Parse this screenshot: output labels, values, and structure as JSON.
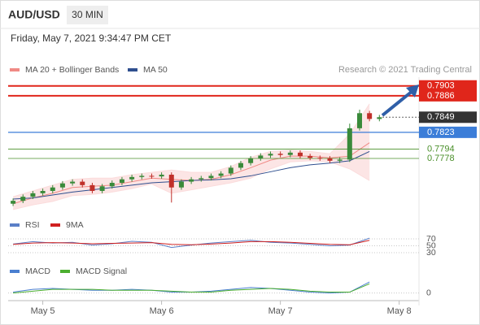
{
  "header": {
    "symbol": "AUD/USD",
    "timeframe": "30 MIN",
    "timestamp": "Friday, May 7, 2021 9:34:47 PM CET"
  },
  "chart_data": {
    "type": "candlestick",
    "credit": "Research © 2021 Trading Central",
    "x": [
      -6,
      -4,
      -2,
      0,
      2,
      4,
      6,
      8,
      10,
      12,
      14,
      16,
      18,
      20,
      22,
      24,
      26,
      28,
      30,
      32,
      34,
      36,
      38,
      40,
      42,
      44,
      46,
      48,
      50,
      52,
      54,
      56,
      58,
      60,
      62,
      64,
      66,
      68
    ],
    "open": [
      0.77,
      0.7705,
      0.7712,
      0.7718,
      0.7722,
      0.7728,
      0.7735,
      0.7738,
      0.7732,
      0.7722,
      0.773,
      0.7736,
      0.7742,
      0.7746,
      0.7748,
      0.7747,
      0.775,
      0.7728,
      0.7738,
      0.7742,
      0.7744,
      0.7748,
      0.7752,
      0.7762,
      0.777,
      0.7778,
      0.7783,
      0.7786,
      0.7784,
      0.7788,
      0.7782,
      0.7779,
      0.7778,
      0.7774,
      0.7776,
      0.783,
      0.7856,
      0.7846
    ],
    "high": [
      0.7709,
      0.7716,
      0.7722,
      0.7726,
      0.7732,
      0.7739,
      0.7742,
      0.7742,
      0.7736,
      0.7734,
      0.774,
      0.7746,
      0.775,
      0.7752,
      0.7752,
      0.7754,
      0.7754,
      0.7742,
      0.7746,
      0.7748,
      0.7752,
      0.7756,
      0.7766,
      0.7774,
      0.7782,
      0.7787,
      0.779,
      0.779,
      0.7792,
      0.7792,
      0.7786,
      0.7783,
      0.7782,
      0.778,
      0.7838,
      0.7862,
      0.786,
      0.7853
    ],
    "low": [
      0.7696,
      0.7701,
      0.7708,
      0.7714,
      0.7718,
      0.7724,
      0.7731,
      0.7728,
      0.7718,
      0.7718,
      0.7726,
      0.7732,
      0.7738,
      0.7742,
      0.7743,
      0.7743,
      0.7702,
      0.7724,
      0.7734,
      0.7738,
      0.774,
      0.7744,
      0.7748,
      0.7758,
      0.7766,
      0.7774,
      0.7779,
      0.778,
      0.778,
      0.7778,
      0.7775,
      0.7774,
      0.777,
      0.777,
      0.7772,
      0.7826,
      0.7842,
      0.7842
    ],
    "close": [
      0.7705,
      0.7712,
      0.7718,
      0.7722,
      0.7728,
      0.7735,
      0.7738,
      0.7732,
      0.7722,
      0.773,
      0.7736,
      0.7742,
      0.7746,
      0.7748,
      0.7747,
      0.775,
      0.7728,
      0.7738,
      0.7742,
      0.7744,
      0.7748,
      0.7752,
      0.7762,
      0.777,
      0.7778,
      0.7783,
      0.7786,
      0.7784,
      0.7788,
      0.7782,
      0.7779,
      0.7778,
      0.7774,
      0.7776,
      0.783,
      0.7856,
      0.7846,
      0.7849
    ],
    "up_color": "#3a8a3a",
    "down_color": "#c0302a",
    "xlim": [
      -7,
      76
    ],
    "xticks": [
      {
        "value": 0,
        "label": "May 5"
      },
      {
        "value": 24,
        "label": "May 6"
      },
      {
        "value": 48,
        "label": "May 7"
      },
      {
        "value": 72,
        "label": "May 8"
      }
    ],
    "ylim": [
      0.7694,
      0.7918
    ],
    "indicator_x": [
      -6,
      -2,
      2,
      6,
      10,
      14,
      18,
      22,
      26,
      30,
      34,
      38,
      42,
      46,
      50,
      54,
      58,
      62,
      66
    ],
    "overlays": [
      {
        "name": "MA 20 + Bollinger Bands",
        "color": "#f08a85",
        "band_color": "#fbdcdc",
        "values": [
          0.77,
          0.771,
          0.7718,
          0.7728,
          0.773,
          0.7732,
          0.7738,
          0.7744,
          0.7742,
          0.774,
          0.7742,
          0.775,
          0.7762,
          0.7775,
          0.7782,
          0.7782,
          0.7779,
          0.7782,
          0.7805
        ],
        "upper": [
          0.7712,
          0.7722,
          0.7732,
          0.7742,
          0.7744,
          0.7744,
          0.775,
          0.7754,
          0.7758,
          0.7754,
          0.7754,
          0.7764,
          0.778,
          0.779,
          0.7792,
          0.779,
          0.7786,
          0.782,
          0.7872
        ],
        "lower": [
          0.769,
          0.7698,
          0.7704,
          0.7714,
          0.7716,
          0.772,
          0.7726,
          0.7734,
          0.7718,
          0.7724,
          0.773,
          0.7736,
          0.7744,
          0.776,
          0.7772,
          0.7774,
          0.7772,
          0.776,
          0.774
        ]
      },
      {
        "name": "MA 50",
        "color": "#2f4f8f",
        "values": [
          0.7708,
          0.771,
          0.7715,
          0.772,
          0.7724,
          0.7728,
          0.7732,
          0.7736,
          0.7738,
          0.774,
          0.7741,
          0.7743,
          0.7748,
          0.7755,
          0.7762,
          0.7767,
          0.777,
          0.7774,
          0.779
        ]
      }
    ],
    "levels": [
      {
        "value": 0.7903,
        "color": "#e0261b",
        "boxed": true
      },
      {
        "value": 0.7886,
        "color": "#e0261b",
        "boxed": true
      },
      {
        "value": 0.7823,
        "color": "#3b7dd8",
        "boxed": true
      },
      {
        "value": 0.7794,
        "color": "#4a8f2a",
        "boxed": false
      },
      {
        "value": 0.7778,
        "color": "#4a8f2a",
        "boxed": false
      }
    ],
    "last_price": {
      "value": 0.7849,
      "color": "#333333"
    },
    "rsi": {
      "ylim": [
        10,
        90
      ],
      "yticks": [
        70,
        50,
        30
      ],
      "series": [
        {
          "name": "RSI",
          "color": "#5b7fc7",
          "values": [
            55,
            62,
            58,
            60,
            52,
            56,
            63,
            60,
            45,
            52,
            58,
            62,
            66,
            60,
            58,
            54,
            50,
            52,
            72
          ]
        },
        {
          "name": "9MA",
          "color": "#d02020",
          "values": [
            54,
            58,
            59,
            58,
            56,
            57,
            58,
            59,
            54,
            53,
            55,
            58,
            62,
            62,
            60,
            57,
            54,
            53,
            66
          ]
        }
      ]
    },
    "macd": {
      "ylim": [
        -0.001,
        0.002
      ],
      "yticks": [
        0
      ],
      "series": [
        {
          "name": "MACD",
          "color": "#4a7fd0",
          "values": [
            0.0001,
            0.0004,
            0.0005,
            0.0004,
            0.0003,
            0.0003,
            0.0004,
            0.0003,
            0.0001,
            0.0001,
            0.0002,
            0.0004,
            0.0006,
            0.0005,
            0.0003,
            0.0001,
            0.0,
            0.0001,
            0.0012
          ]
        },
        {
          "name": "MACD Signal",
          "color": "#4caf30",
          "values": [
            0.0,
            0.0002,
            0.0004,
            0.0004,
            0.0004,
            0.0003,
            0.0003,
            0.0003,
            0.0002,
            0.0001,
            0.0001,
            0.0003,
            0.0004,
            0.0005,
            0.0004,
            0.0002,
            0.0001,
            0.0001,
            0.001
          ]
        }
      ]
    }
  }
}
